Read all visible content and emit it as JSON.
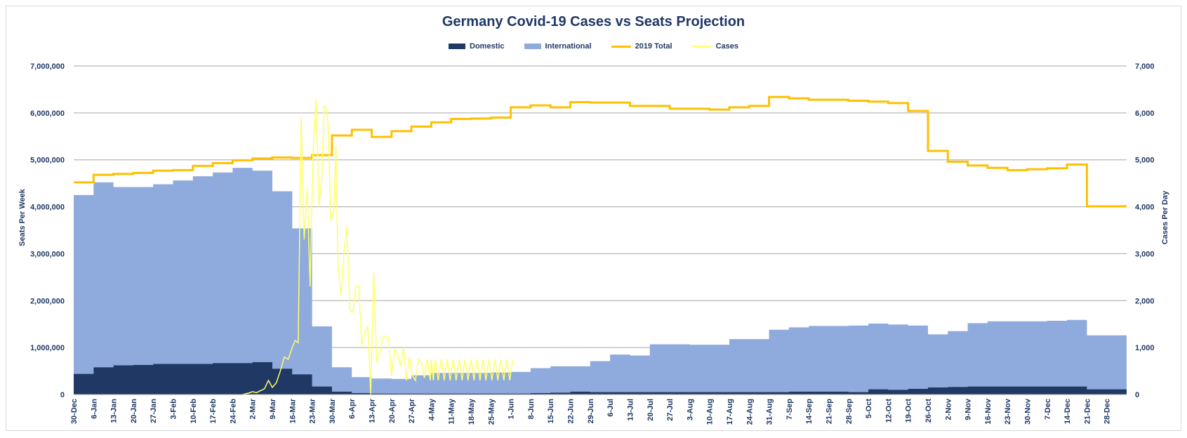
{
  "chart_data": {
    "type": "area",
    "title": "Germany Covid-19 Cases vs Seats Projection",
    "ylabel_left": "Seats Per Week",
    "ylabel_right": "Cases Per Day",
    "ylim_left": [
      0,
      7000000
    ],
    "ylim_right": [
      0,
      7000
    ],
    "yticks_left": [
      "0",
      "1,000,000",
      "2,000,000",
      "3,000,000",
      "4,000,000",
      "5,000,000",
      "6,000,000",
      "7,000,000"
    ],
    "yticks_right": [
      "0",
      "1,000",
      "2,000",
      "3,000",
      "4,000",
      "5,000",
      "6,000",
      "7,000"
    ],
    "legend_position": "top-center",
    "grid": true,
    "categories": [
      "30-Dec",
      "6-Jan",
      "13-Jan",
      "20-Jan",
      "27-Jan",
      "3-Feb",
      "10-Feb",
      "17-Feb",
      "24-Feb",
      "2-Mar",
      "9-Mar",
      "16-Mar",
      "23-Mar",
      "30-Mar",
      "6-Apr",
      "13-Apr",
      "20-Apr",
      "27-Apr",
      "4-May",
      "11-May",
      "18-May",
      "25-May",
      "1-Jun",
      "8-Jun",
      "15-Jun",
      "22-Jun",
      "29-Jun",
      "6-Jul",
      "13-Jul",
      "20-Jul",
      "27-Jul",
      "3-Aug",
      "10-Aug",
      "17-Aug",
      "24-Aug",
      "31-Aug",
      "7-Sep",
      "14-Sep",
      "21-Sep",
      "28-Sep",
      "5-Oct",
      "12-Oct",
      "19-Oct",
      "26-Oct",
      "2-Nov",
      "9-Nov",
      "16-Nov",
      "23-Nov",
      "30-Nov",
      "7-Dec",
      "14-Dec",
      "21-Dec",
      "28-Dec"
    ],
    "series": [
      {
        "name": "Domestic",
        "type": "area",
        "axis": "left",
        "color": "#1f3864",
        "values": [
          440000,
          580000,
          620000,
          630000,
          650000,
          650000,
          650000,
          670000,
          670000,
          690000,
          550000,
          430000,
          170000,
          60000,
          30000,
          20000,
          20000,
          20000,
          20000,
          20000,
          20000,
          20000,
          20000,
          30000,
          40000,
          60000,
          50000,
          50000,
          50000,
          50000,
          50000,
          50000,
          50000,
          50000,
          50000,
          50000,
          60000,
          60000,
          60000,
          50000,
          110000,
          100000,
          120000,
          150000,
          160000,
          170000,
          170000,
          170000,
          170000,
          170000,
          170000,
          110000,
          110000
        ]
      },
      {
        "name": "International",
        "type": "area",
        "axis": "left",
        "stacked_on": "Domestic",
        "color": "#8faadc",
        "values": [
          3810000,
          3940000,
          3800000,
          3790000,
          3830000,
          3910000,
          4000000,
          4060000,
          4160000,
          4080000,
          3780000,
          3110000,
          1280000,
          520000,
          340000,
          320000,
          310000,
          390000,
          440000,
          440000,
          440000,
          450000,
          460000,
          530000,
          560000,
          540000,
          660000,
          800000,
          780000,
          1020000,
          1020000,
          1010000,
          1010000,
          1130000,
          1130000,
          1330000,
          1370000,
          1400000,
          1400000,
          1420000,
          1400000,
          1390000,
          1350000,
          1130000,
          1190000,
          1350000,
          1390000,
          1390000,
          1390000,
          1400000,
          1420000,
          1150000,
          1150000
        ]
      },
      {
        "name": "2019 Total",
        "type": "step-line",
        "axis": "left",
        "color": "#ffc000",
        "values": [
          4520000,
          4680000,
          4700000,
          4720000,
          4770000,
          4780000,
          4870000,
          4930000,
          4990000,
          5030000,
          5050000,
          5040000,
          5100000,
          5520000,
          5640000,
          5490000,
          5610000,
          5710000,
          5800000,
          5870000,
          5880000,
          5900000,
          6120000,
          6160000,
          6120000,
          6230000,
          6220000,
          6220000,
          6150000,
          6150000,
          6090000,
          6090000,
          6070000,
          6120000,
          6150000,
          6340000,
          6310000,
          6280000,
          6280000,
          6260000,
          6240000,
          6210000,
          6040000,
          5190000,
          4960000,
          4880000,
          4830000,
          4780000,
          4800000,
          4820000,
          4900000,
          4010000,
          4010000
        ]
      },
      {
        "name": "Cases",
        "type": "line",
        "axis": "right",
        "color": "#ffff66",
        "x": [
          8.5,
          8.8,
          9.0,
          9.2,
          9.4,
          9.6,
          9.8,
          10.0,
          10.2,
          10.4,
          10.6,
          10.8,
          11.0,
          11.15,
          11.3,
          11.45,
          11.6,
          11.75,
          11.9,
          12.05,
          12.2,
          12.35,
          12.5,
          12.6,
          12.7,
          12.8,
          12.95,
          13.1,
          13.2,
          13.3,
          13.45,
          13.6,
          13.75,
          13.9,
          14.05,
          14.2,
          14.35,
          14.5,
          14.65,
          14.8,
          14.95,
          15.1,
          15.25,
          15.4,
          15.55,
          15.7,
          15.85,
          16.0,
          16.15,
          16.3,
          16.45,
          16.6,
          16.75,
          16.9,
          17.05,
          17.2,
          17.35,
          17.5,
          17.65,
          17.8,
          17.95,
          18.0,
          18.1,
          18.2,
          18.35,
          18.5,
          18.65,
          18.8,
          18.95,
          19.1,
          19.25,
          19.4,
          19.55,
          19.7,
          19.85,
          20.0,
          20.15,
          20.3,
          20.45,
          20.6,
          20.75,
          20.9,
          21.05,
          21.2,
          21.35,
          21.5,
          21.65,
          21.8,
          21.95,
          22.1
        ],
        "values": [
          0,
          30,
          60,
          40,
          80,
          120,
          300,
          150,
          250,
          500,
          800,
          750,
          1000,
          1150,
          1100,
          5900,
          3300,
          4400,
          2300,
          5200,
          6300,
          4000,
          4700,
          6150,
          6100,
          5800,
          3700,
          3950,
          5300,
          2800,
          2100,
          3000,
          3600,
          1800,
          1750,
          2300,
          2300,
          1050,
          1300,
          1450,
          0,
          2600,
          700,
          850,
          1200,
          1250,
          1200,
          400,
          950,
          850,
          600,
          1000,
          300,
          800,
          400,
          300,
          750,
          700,
          350,
          750,
          300,
          750,
          300,
          750,
          300,
          750,
          300,
          750,
          300,
          750,
          300,
          750,
          300,
          750,
          300,
          750,
          300,
          750,
          300,
          750,
          300,
          750,
          300,
          750,
          300,
          750,
          300,
          750,
          300,
          750
        ]
      }
    ]
  }
}
